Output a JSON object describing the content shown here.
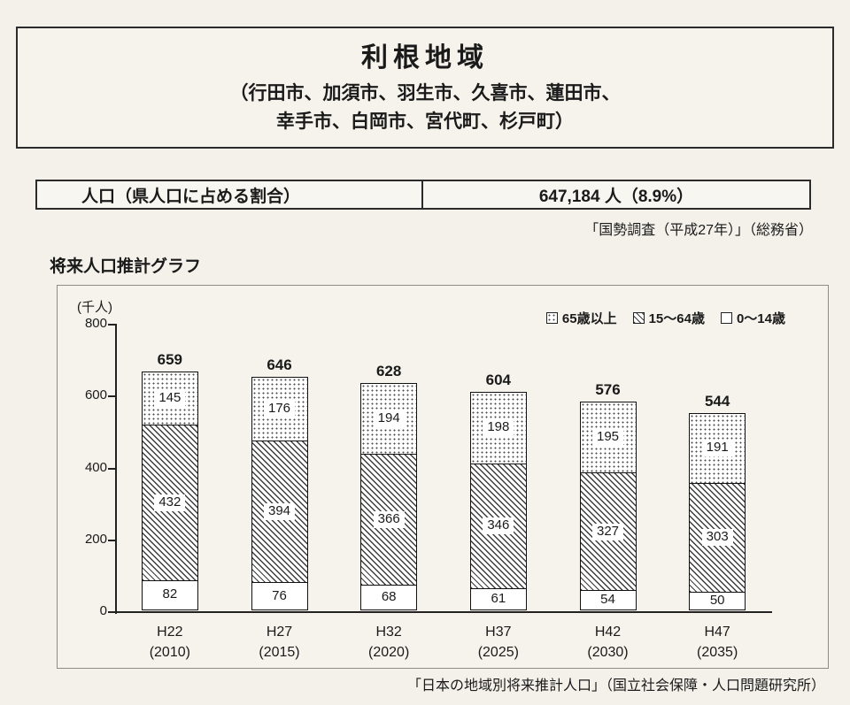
{
  "header": {
    "title": "利根地域",
    "cities_line1": "（行田市、加須市、羽生市、久喜市、蓮田市、",
    "cities_line2": "幸手市、白岡市、宮代町、杉戸町）"
  },
  "population": {
    "label": "人口（県人口に占める割合）",
    "value": "647,184 人（8.9%）",
    "source": "「国勢調査（平成27年）」（総務省）"
  },
  "chart": {
    "section_title": "将来人口推計グラフ",
    "unit_label": "(千人)",
    "source": "「日本の地域別将来推計人口」（国立社会保障・人口問題研究所）"
  },
  "chart_data": {
    "type": "bar",
    "stacked": true,
    "title": "将来人口推計グラフ",
    "ylabel": "(千人)",
    "ylim": [
      0,
      800
    ],
    "yticks": [
      0,
      200,
      400,
      600,
      800
    ],
    "grid": false,
    "legend_position": "top-right",
    "categories": [
      "H22",
      "H27",
      "H32",
      "H37",
      "H42",
      "H47"
    ],
    "category_years": [
      "(2010)",
      "(2015)",
      "(2020)",
      "(2025)",
      "(2030)",
      "(2035)"
    ],
    "totals": [
      659,
      646,
      628,
      604,
      576,
      544
    ],
    "series": [
      {
        "name": "65歳以上",
        "pattern": "dots",
        "values": [
          145,
          176,
          194,
          198,
          195,
          191
        ]
      },
      {
        "name": "15～64歳",
        "pattern": "hatch",
        "values": [
          432,
          394,
          366,
          346,
          327,
          303
        ]
      },
      {
        "name": "0～14歳",
        "pattern": "plain",
        "values": [
          82,
          76,
          68,
          61,
          54,
          50
        ]
      }
    ]
  },
  "colors": {
    "paper": "#f3f1ea",
    "ink": "#1a1a1a"
  }
}
